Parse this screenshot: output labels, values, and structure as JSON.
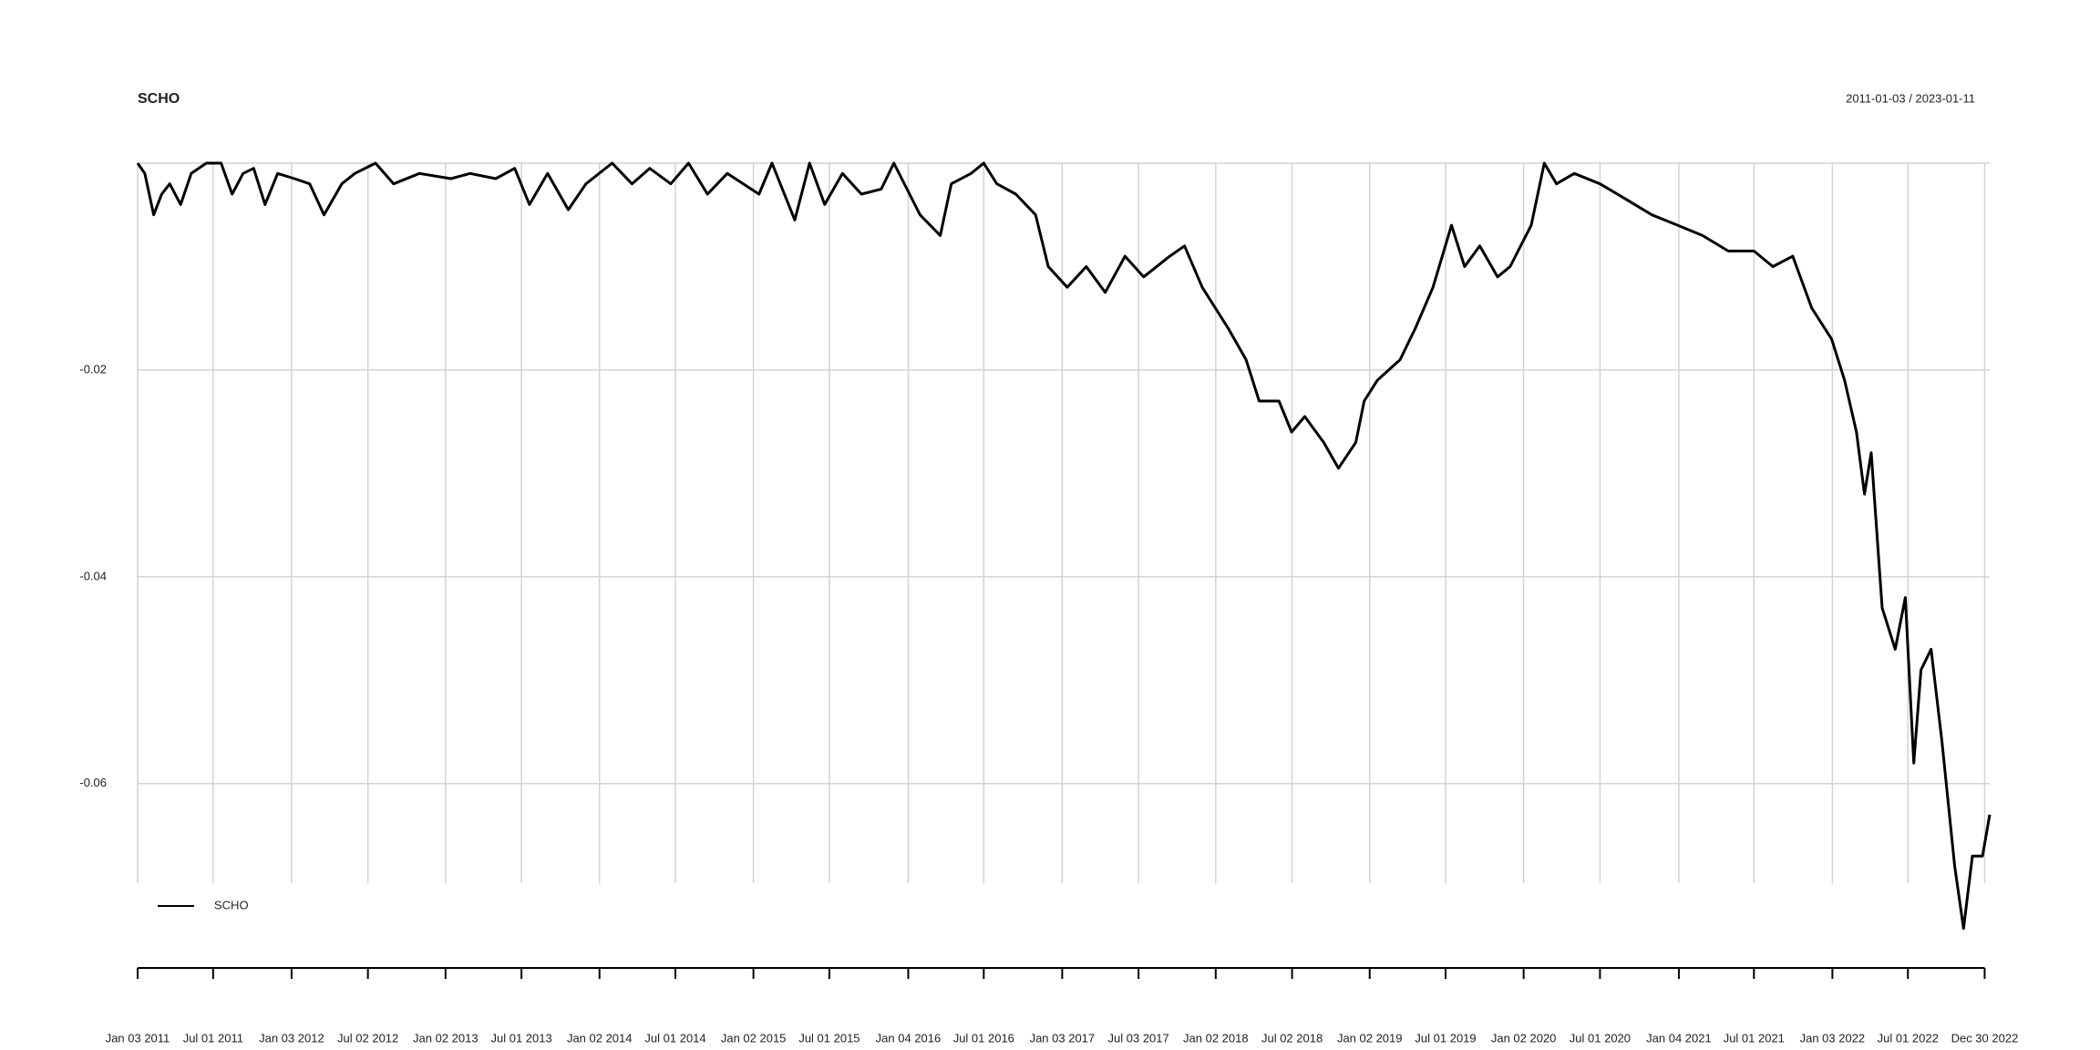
{
  "chart_data": {
    "type": "line",
    "title": "SCHO",
    "subtitle": "2011-01-03 / 2023-01-11",
    "x": [
      "2011-01-03",
      "2011-01-20",
      "2011-02-10",
      "2011-03-01",
      "2011-03-20",
      "2011-04-15",
      "2011-05-10",
      "2011-06-15",
      "2011-07-20",
      "2011-08-15",
      "2011-09-10",
      "2011-10-05",
      "2011-11-01",
      "2011-12-01",
      "2012-01-10",
      "2012-02-15",
      "2012-03-20",
      "2012-05-01",
      "2012-06-01",
      "2012-07-20",
      "2012-09-01",
      "2012-11-01",
      "2013-01-15",
      "2013-03-01",
      "2013-05-01",
      "2013-06-15",
      "2013-07-20",
      "2013-09-01",
      "2013-10-20",
      "2013-12-01",
      "2014-02-01",
      "2014-03-20",
      "2014-05-01",
      "2014-06-20",
      "2014-08-01",
      "2014-09-15",
      "2014-11-01",
      "2015-01-15",
      "2015-02-15",
      "2015-04-10",
      "2015-05-15",
      "2015-06-20",
      "2015-08-01",
      "2015-09-15",
      "2015-11-01",
      "2015-12-01",
      "2016-02-01",
      "2016-03-20",
      "2016-04-15",
      "2016-06-01",
      "2016-07-01",
      "2016-08-01",
      "2016-09-15",
      "2016-11-01",
      "2016-12-01",
      "2017-01-15",
      "2017-03-01",
      "2017-04-15",
      "2017-06-01",
      "2017-07-15",
      "2017-09-15",
      "2017-10-20",
      "2017-12-01",
      "2018-02-01",
      "2018-03-15",
      "2018-04-15",
      "2018-06-01",
      "2018-07-01",
      "2018-08-01",
      "2018-09-15",
      "2018-10-20",
      "2018-11-30",
      "2018-12-20",
      "2019-01-20",
      "2019-03-15",
      "2019-04-20",
      "2019-06-01",
      "2019-07-15",
      "2019-08-15",
      "2019-09-20",
      "2019-11-01",
      "2019-12-01",
      "2020-01-20",
      "2020-02-20",
      "2020-03-20",
      "2020-05-01",
      "2020-07-01",
      "2020-09-01",
      "2020-11-01",
      "2021-01-01",
      "2021-03-01",
      "2021-05-01",
      "2021-07-01",
      "2021-08-15",
      "2021-10-01",
      "2021-11-15",
      "2022-01-01",
      "2022-02-01",
      "2022-03-01",
      "2022-03-20",
      "2022-04-05",
      "2022-05-01",
      "2022-06-01",
      "2022-06-25",
      "2022-07-15",
      "2022-08-01",
      "2022-08-25",
      "2022-09-20",
      "2022-10-20",
      "2022-11-10",
      "2022-12-01",
      "2022-12-25",
      "2023-01-11"
    ],
    "series": [
      {
        "name": "SCHO",
        "color": "#000000",
        "values": [
          0,
          -0.001,
          -0.005,
          -0.003,
          -0.002,
          -0.004,
          -0.001,
          0,
          0,
          -0.003,
          -0.001,
          -0.0005,
          -0.004,
          -0.001,
          -0.0015,
          -0.002,
          -0.005,
          -0.002,
          -0.001,
          0,
          -0.002,
          -0.001,
          -0.0015,
          -0.001,
          -0.0015,
          -0.0005,
          -0.004,
          -0.001,
          -0.0045,
          -0.002,
          0,
          -0.002,
          -0.0005,
          -0.002,
          0,
          -0.003,
          -0.001,
          -0.003,
          0,
          -0.0055,
          0,
          -0.004,
          -0.001,
          -0.003,
          -0.0025,
          0,
          -0.005,
          -0.007,
          -0.002,
          -0.001,
          0,
          -0.002,
          -0.003,
          -0.005,
          -0.01,
          -0.012,
          -0.01,
          -0.0125,
          -0.009,
          -0.011,
          -0.009,
          -0.008,
          -0.012,
          -0.016,
          -0.019,
          -0.023,
          -0.023,
          -0.026,
          -0.0245,
          -0.027,
          -0.0295,
          -0.027,
          -0.023,
          -0.021,
          -0.019,
          -0.016,
          -0.012,
          -0.006,
          -0.01,
          -0.008,
          -0.011,
          -0.01,
          -0.006,
          0,
          -0.002,
          -0.001,
          -0.002,
          -0.0035,
          -0.005,
          -0.006,
          -0.007,
          -0.0085,
          -0.0085,
          -0.01,
          -0.009,
          -0.014,
          -0.017,
          -0.021,
          -0.026,
          -0.032,
          -0.028,
          -0.043,
          -0.047,
          -0.042,
          -0.058,
          -0.049,
          -0.047,
          -0.056,
          -0.068,
          -0.074,
          -0.067,
          -0.067,
          -0.063
        ]
      }
    ],
    "xlim": [
      "2011-01-03",
      "2023-01-11"
    ],
    "xticks": [
      {
        "value": "2011-01-03",
        "label": "Jan 03 2011"
      },
      {
        "value": "2011-07-01",
        "label": "Jul 01 2011"
      },
      {
        "value": "2012-01-03",
        "label": "Jan 03 2012"
      },
      {
        "value": "2012-07-02",
        "label": "Jul 02 2012"
      },
      {
        "value": "2013-01-02",
        "label": "Jan 02 2013"
      },
      {
        "value": "2013-07-01",
        "label": "Jul 01 2013"
      },
      {
        "value": "2014-01-02",
        "label": "Jan 02 2014"
      },
      {
        "value": "2014-07-01",
        "label": "Jul 01 2014"
      },
      {
        "value": "2015-01-02",
        "label": "Jan 02 2015"
      },
      {
        "value": "2015-07-01",
        "label": "Jul 01 2015"
      },
      {
        "value": "2016-01-04",
        "label": "Jan 04 2016"
      },
      {
        "value": "2016-07-01",
        "label": "Jul 01 2016"
      },
      {
        "value": "2017-01-03",
        "label": "Jan 03 2017"
      },
      {
        "value": "2017-07-03",
        "label": "Jul 03 2017"
      },
      {
        "value": "2018-01-02",
        "label": "Jan 02 2018"
      },
      {
        "value": "2018-07-02",
        "label": "Jul 02 2018"
      },
      {
        "value": "2019-01-02",
        "label": "Jan 02 2019"
      },
      {
        "value": "2019-07-01",
        "label": "Jul 01 2019"
      },
      {
        "value": "2020-01-02",
        "label": "Jan 02 2020"
      },
      {
        "value": "2020-07-01",
        "label": "Jul 01 2020"
      },
      {
        "value": "2021-01-04",
        "label": "Jan 04 2021"
      },
      {
        "value": "2021-07-01",
        "label": "Jul 01 2021"
      },
      {
        "value": "2022-01-03",
        "label": "Jan 03 2022"
      },
      {
        "value": "2022-07-01",
        "label": "Jul 01 2022"
      },
      {
        "value": "2022-12-30",
        "label": "Dec 30 2022"
      }
    ],
    "ylim": [
      -0.075,
      0
    ],
    "yticks": [
      -0.06,
      -0.04,
      -0.02
    ],
    "grid": true,
    "legend": "bottom-left"
  }
}
